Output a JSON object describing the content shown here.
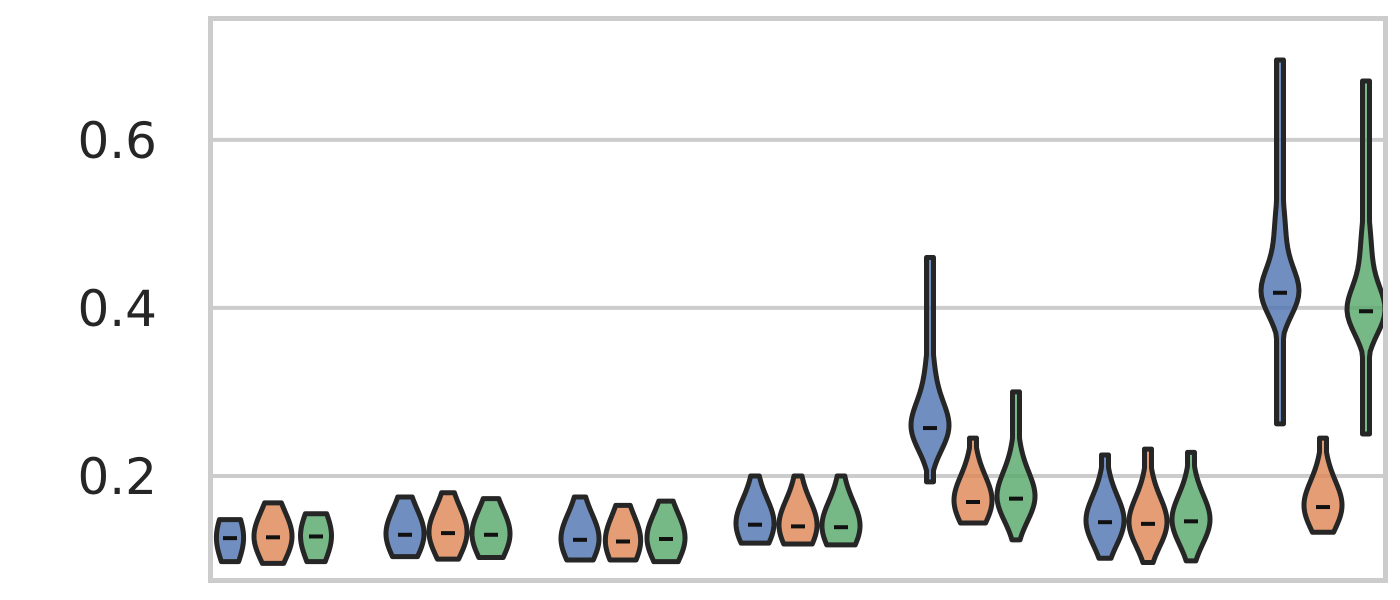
{
  "chart_data": {
    "type": "violin",
    "title": "",
    "xlabel": "",
    "ylabel": "",
    "ylim": [
      0.075,
      0.745
    ],
    "yticks": [
      0.2,
      0.4,
      0.6
    ],
    "ytick_labels": [
      "0.2",
      "0.4",
      "0.6"
    ],
    "grid": "horizontal",
    "legend": "none",
    "groups": 7,
    "series": [
      {
        "color": "#4c72b0",
        "violins": [
          {
            "min": 0.098,
            "max": 0.148,
            "median": 0.126
          },
          {
            "min": 0.104,
            "max": 0.175,
            "median": 0.13
          },
          {
            "min": 0.1,
            "max": 0.175,
            "median": 0.124
          },
          {
            "min": 0.12,
            "max": 0.2,
            "median": 0.142
          },
          {
            "min": 0.193,
            "max": 0.46,
            "median": 0.257
          },
          {
            "min": 0.102,
            "max": 0.225,
            "median": 0.145
          },
          {
            "min": 0.262,
            "max": 0.695,
            "median": 0.418
          }
        ]
      },
      {
        "color": "#dd8452",
        "violins": [
          {
            "min": 0.096,
            "max": 0.168,
            "median": 0.127
          },
          {
            "min": 0.101,
            "max": 0.18,
            "median": 0.132
          },
          {
            "min": 0.1,
            "max": 0.165,
            "median": 0.122
          },
          {
            "min": 0.119,
            "max": 0.2,
            "median": 0.14
          },
          {
            "min": 0.144,
            "max": 0.245,
            "median": 0.169
          },
          {
            "min": 0.097,
            "max": 0.232,
            "median": 0.143
          },
          {
            "min": 0.133,
            "max": 0.245,
            "median": 0.163
          }
        ]
      },
      {
        "color": "#55a868",
        "violins": [
          {
            "min": 0.098,
            "max": 0.155,
            "median": 0.128
          },
          {
            "min": 0.103,
            "max": 0.173,
            "median": 0.13
          },
          {
            "min": 0.098,
            "max": 0.17,
            "median": 0.125
          },
          {
            "min": 0.118,
            "max": 0.2,
            "median": 0.139
          },
          {
            "min": 0.124,
            "max": 0.3,
            "median": 0.173
          },
          {
            "min": 0.099,
            "max": 0.228,
            "median": 0.146
          },
          {
            "min": 0.25,
            "max": 0.67,
            "median": 0.396
          }
        ]
      }
    ]
  }
}
